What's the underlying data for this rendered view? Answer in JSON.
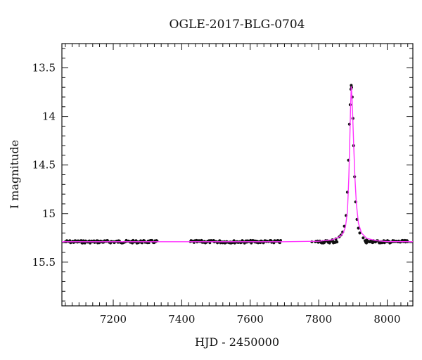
{
  "chart_data": {
    "type": "scatter",
    "title": "OGLE-2017-BLG-0704",
    "xlabel": "HJD - 2450000",
    "ylabel": "I magnitude",
    "xlim": [
      7050,
      8075
    ],
    "ylim": [
      15.95,
      13.25
    ],
    "y_inverted": true,
    "x_ticks": [
      7200,
      7400,
      7600,
      7800,
      8000
    ],
    "x_tick_labels": [
      "7200",
      "7400",
      "7600",
      "7800",
      "8000"
    ],
    "y_ticks": [
      13.5,
      14.0,
      14.5,
      15.0,
      15.5
    ],
    "y_tick_labels": [
      "13.5",
      "14",
      "14.5",
      "15",
      "15.5"
    ],
    "baseline_mag": 15.29,
    "observing_seasons": [
      [
        7060,
        7330
      ],
      [
        7425,
        7690
      ],
      [
        7790,
        8060
      ]
    ],
    "peak": {
      "x": 7895,
      "y": 13.68
    },
    "point_color": "#111111",
    "model_color": "#ff33ff",
    "series": [
      {
        "style": "points",
        "x": [
          7780,
          7800,
          7820,
          7840,
          7850,
          7860,
          7865,
          7870,
          7875,
          7880,
          7884,
          7887,
          7890,
          7892,
          7894,
          7895,
          7896,
          7898,
          7900,
          7902,
          7905,
          7908,
          7912,
          7916,
          7920,
          7930,
          7940,
          7960,
          7980,
          8000,
          8030,
          8060
        ],
        "y": [
          15.29,
          15.29,
          15.28,
          15.27,
          15.26,
          15.24,
          15.22,
          15.19,
          15.13,
          15.02,
          14.78,
          14.45,
          14.08,
          13.88,
          13.72,
          13.68,
          13.7,
          13.8,
          14.02,
          14.3,
          14.62,
          14.88,
          15.06,
          15.15,
          15.2,
          15.25,
          15.27,
          15.28,
          15.29,
          15.29,
          15.29,
          15.29
        ]
      },
      {
        "style": "line",
        "x": [
          7050,
          7700,
          7800,
          7840,
          7860,
          7870,
          7878,
          7884,
          7888,
          7891,
          7893,
          7895,
          7897,
          7899,
          7902,
          7906,
          7910,
          7916,
          7925,
          7940,
          7970,
          8000,
          8075
        ],
        "y": [
          15.29,
          15.29,
          15.285,
          15.27,
          15.24,
          15.21,
          15.14,
          14.98,
          14.62,
          14.22,
          13.92,
          13.69,
          13.78,
          13.96,
          14.28,
          14.64,
          14.9,
          15.1,
          15.2,
          15.255,
          15.28,
          15.288,
          15.29
        ]
      }
    ]
  }
}
